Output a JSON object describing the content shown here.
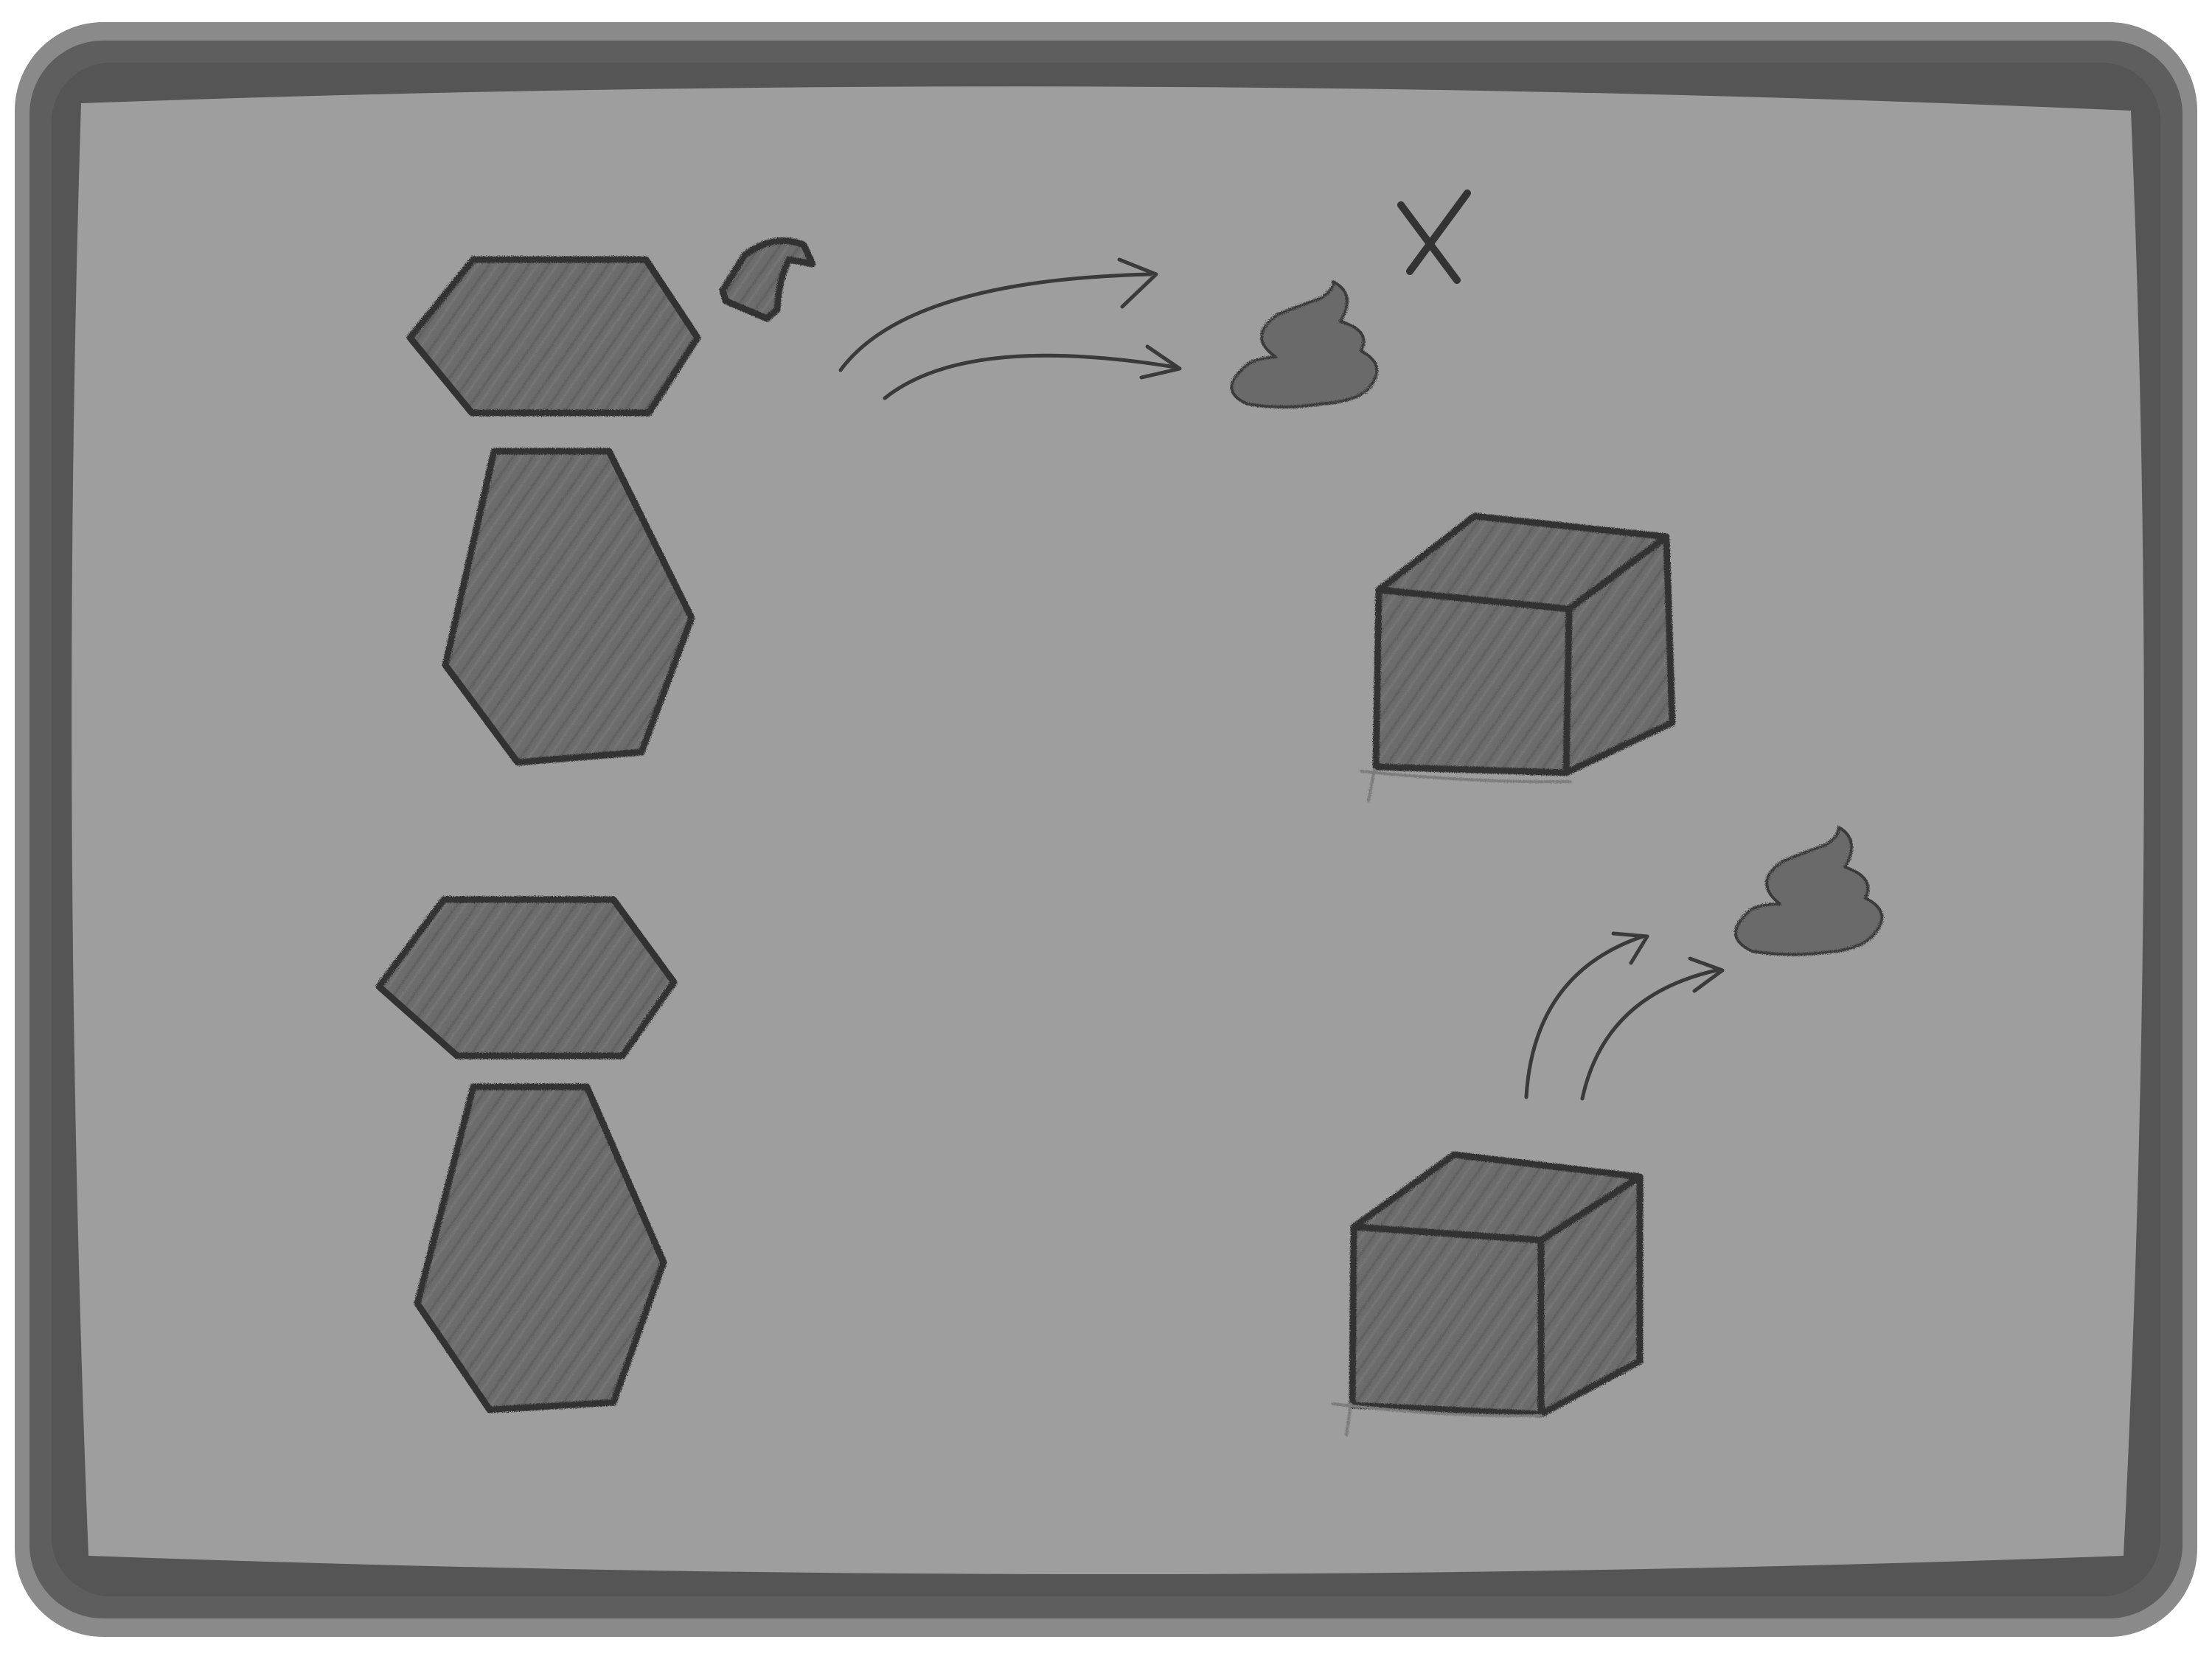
{
  "board": {
    "background_color": "#9e9e9e",
    "frame_color": "#5a5a5a",
    "shape_fill_color": "#6a6a6a",
    "stroke_color": "#333333"
  },
  "icons": [
    "hexagon-head-top",
    "tapered-body-top",
    "bite-fragment",
    "arrow-pair-top",
    "swirl-blob-top",
    "x-mark",
    "cube-top",
    "hexagon-head-bottom",
    "tapered-body-bottom",
    "cube-bottom",
    "arrow-pair-bottom",
    "swirl-blob-bottom"
  ]
}
